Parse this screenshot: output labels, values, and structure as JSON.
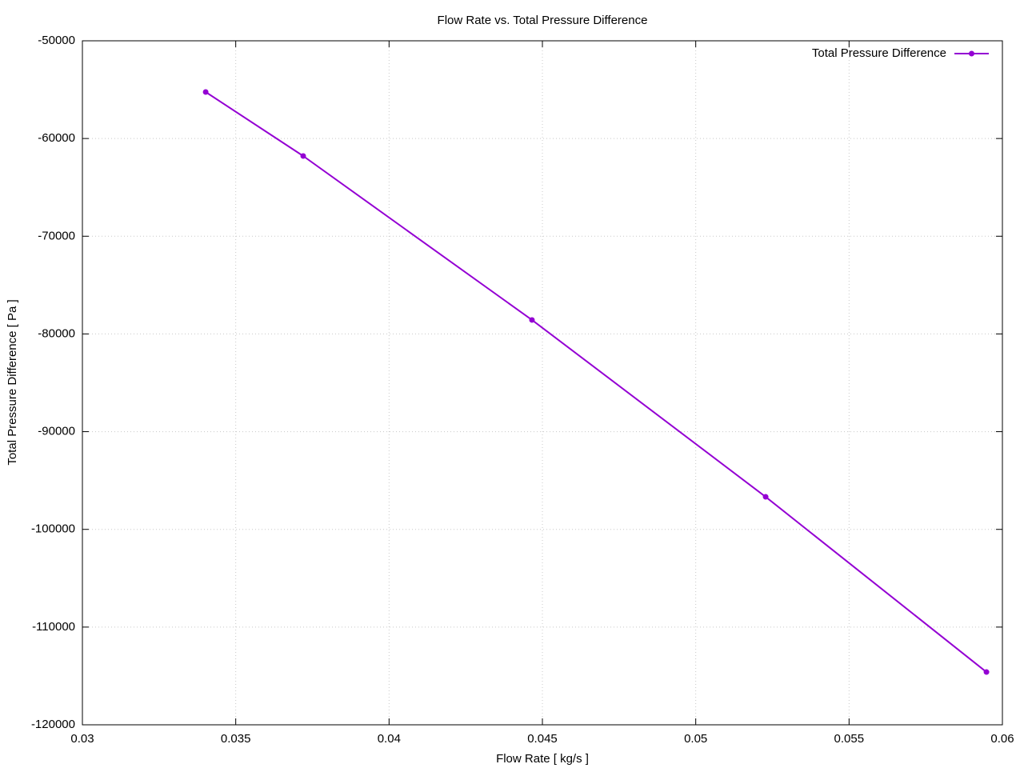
{
  "chart_data": {
    "type": "line",
    "title": "Flow Rate vs. Total Pressure Difference",
    "xlabel": "Flow Rate [ kg/s ]",
    "ylabel": "Total Pressure Difference [ Pa ]",
    "x": [
      0.03402,
      0.0372,
      0.04466,
      0.05228,
      0.05948
    ],
    "series": [
      {
        "name": "Total Pressure Difference",
        "color": "#9400d3",
        "values": [
          -55240,
          -61790,
          -78570,
          -96670,
          -114600
        ]
      }
    ],
    "xlim": [
      0.03,
      0.06
    ],
    "xticks": [
      0.03,
      0.035,
      0.04,
      0.045,
      0.05,
      0.055,
      0.06
    ],
    "ylim": [
      -120000,
      -50000
    ],
    "yticks": [
      -120000,
      -110000,
      -100000,
      -90000,
      -80000,
      -70000,
      -60000,
      -50000
    ],
    "grid": true,
    "legend": "top-right"
  }
}
